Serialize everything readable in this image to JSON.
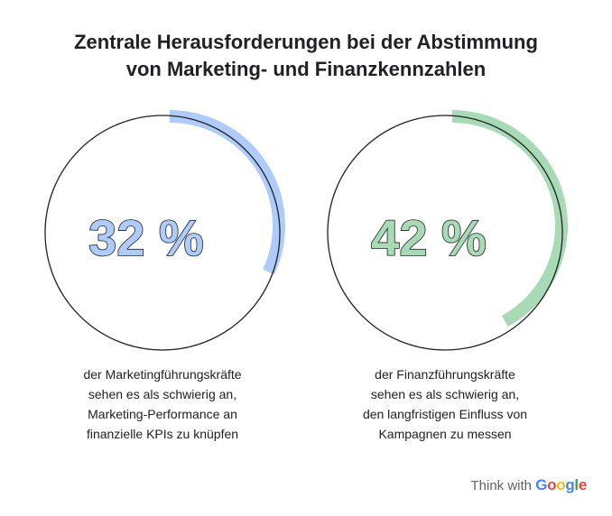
{
  "title": {
    "line1": "Zentrale Herausforderungen bei der Abstimmung",
    "line2": "von Marketing- und Finanzkennzahlen"
  },
  "chart_data": [
    {
      "type": "pie",
      "value": 32,
      "label": "32 %",
      "color": "#aecbfa",
      "caption": [
        "der Marketingführungskräfte",
        "sehen es als schwierig an,",
        "Marketing-Performance an",
        "finanzielle KPIs zu knüpfen"
      ]
    },
    {
      "type": "pie",
      "value": 42,
      "label": "42 %",
      "color": "#a8dab5",
      "caption": [
        "der Finanzführungskräfte",
        "sehen es als schwierig an,",
        "den langfristigen Einfluss von",
        "Kampagnen zu messen"
      ]
    }
  ],
  "brand": {
    "prefix": "Think with",
    "name_letters": [
      "G",
      "o",
      "o",
      "g",
      "l",
      "e"
    ],
    "name_colors": [
      "#4285f4",
      "#ea4335",
      "#fbbc05",
      "#4285f4",
      "#34a853",
      "#ea4335"
    ]
  }
}
